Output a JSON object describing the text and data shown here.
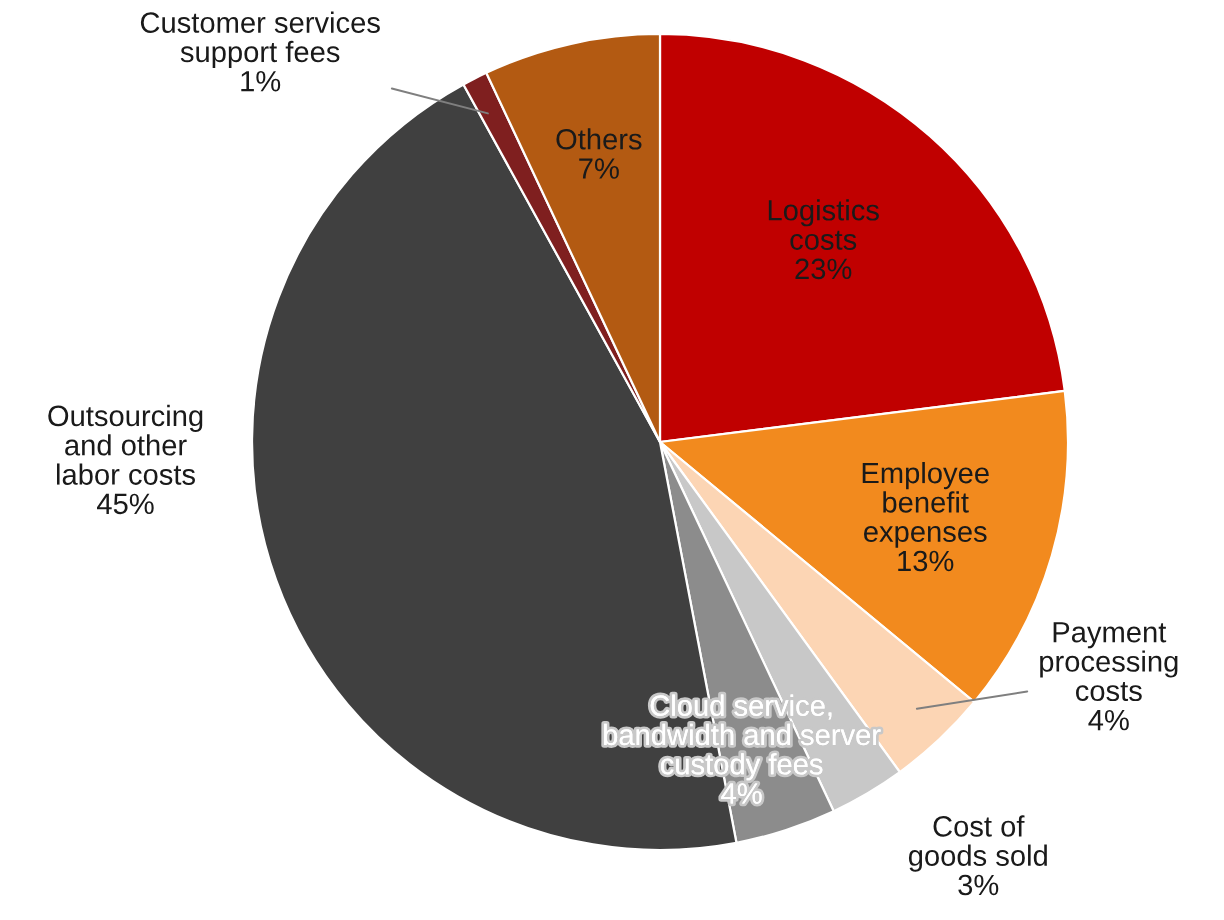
{
  "chart_data": {
    "type": "pie",
    "categories": [
      "Logistics\ncosts",
      "Employee\nbenefit\nexpenses",
      "Payment\nprocessing\ncosts",
      "Cost of\ngoods sold",
      "Cloud service,\nbandwidth and server\ncustody fees",
      "Outsourcing\nand other\nlabor costs",
      "Customer services\nsupport fees",
      "Others"
    ],
    "values": [
      23,
      13,
      4,
      3,
      4,
      45,
      1,
      7
    ],
    "colors": [
      "#c00000",
      "#f28a1e",
      "#fcd5b4",
      "#c8c8c8",
      "#8c8c8c",
      "#404040",
      "#7f1f1f",
      "#b35a12"
    ],
    "value_labels": [
      "23%",
      "13%",
      "4%",
      "3%",
      "4%",
      "45%",
      "1%",
      "7%"
    ]
  }
}
